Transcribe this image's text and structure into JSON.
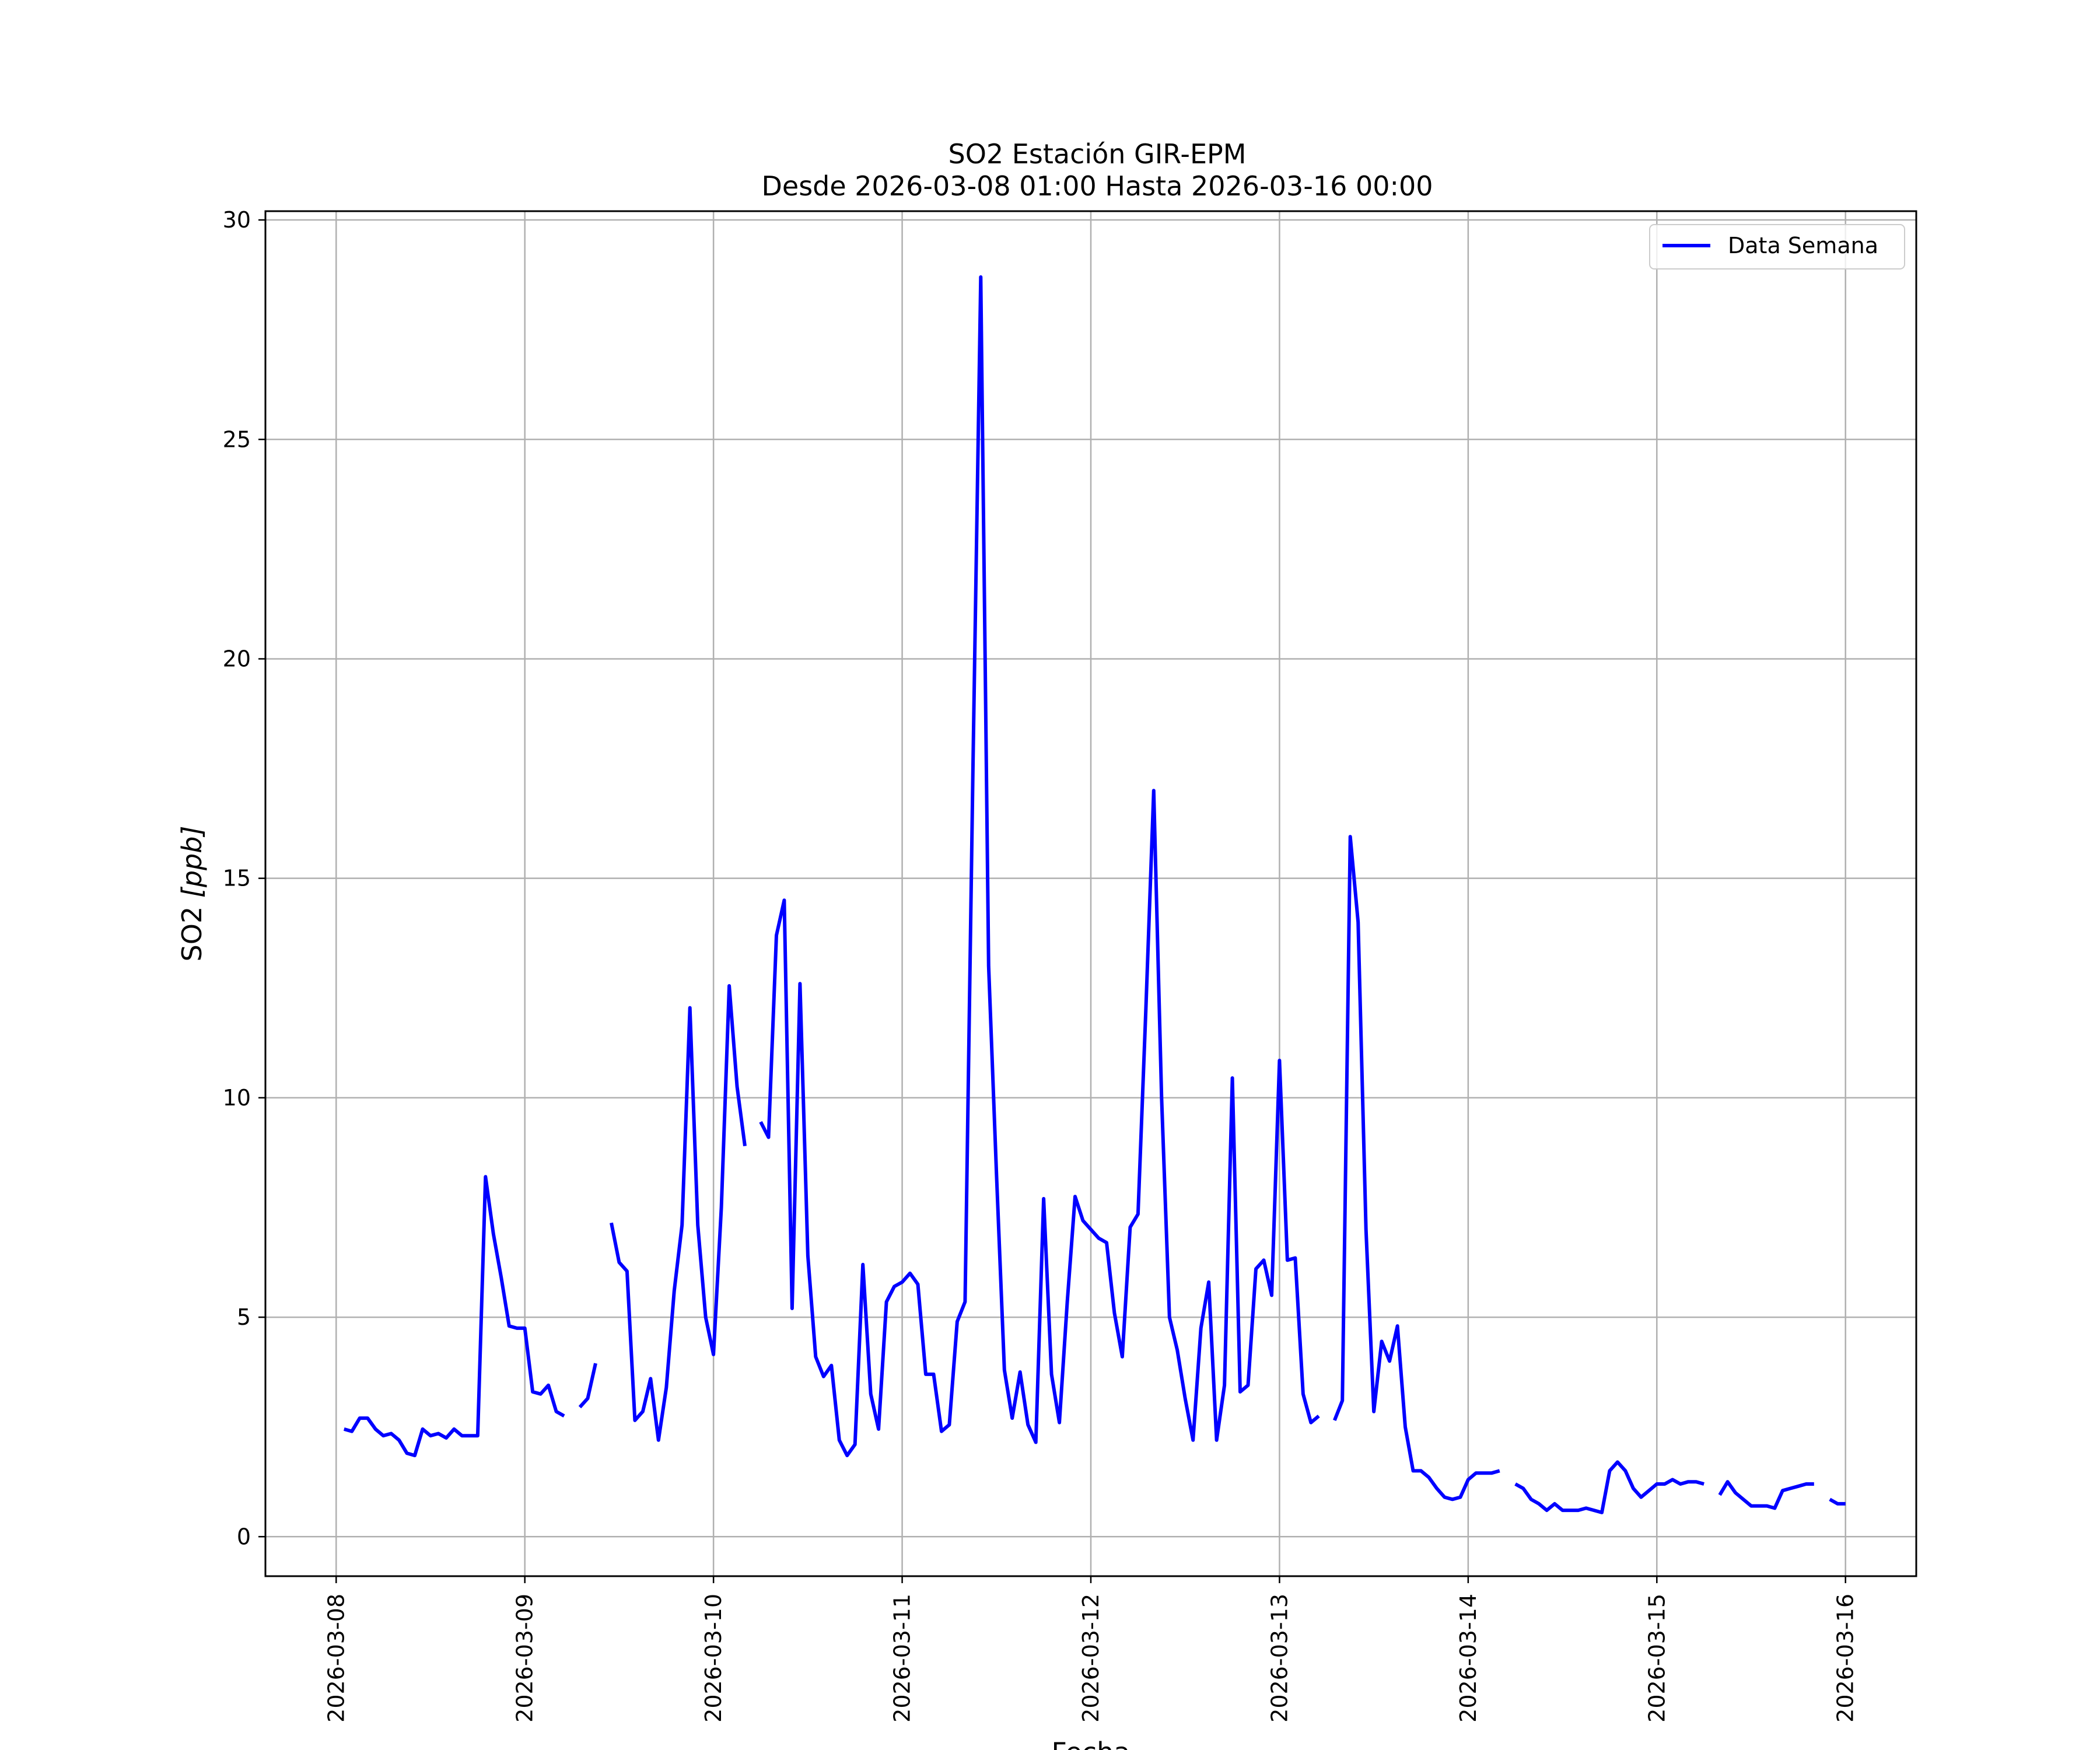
{
  "chart_data": {
    "type": "line",
    "title": "SO2 Estación GIR-EPM",
    "subtitle": "Desde 2026-03-08 01:00 Hasta 2026-03-16 00:00",
    "xlabel": "Fecha",
    "ylabel_main": "SO2 ",
    "ylabel_unit": "[ppb]",
    "x_start": "2026-03-08 01:00",
    "x_step_hours": 1,
    "xlim": [
      "2026-03-07 15:00",
      "2026-03-16 09:00"
    ],
    "ylim": [
      -0.9,
      30.2
    ],
    "x_ticks": [
      "2026-03-08",
      "2026-03-09",
      "2026-03-10",
      "2026-03-11",
      "2026-03-12",
      "2026-03-13",
      "2026-03-14",
      "2026-03-15",
      "2026-03-16"
    ],
    "y_ticks": [
      "0",
      "5",
      "10",
      "15",
      "20",
      "25",
      "30"
    ],
    "grid": true,
    "legend_position": "top-right",
    "series": [
      {
        "name": "Data Semana",
        "color": "#0000ff",
        "values": [
          2.45,
          2.4,
          2.7,
          2.7,
          2.45,
          2.3,
          2.35,
          2.2,
          1.9,
          1.85,
          2.45,
          2.3,
          2.35,
          2.25,
          2.45,
          2.3,
          2.3,
          2.3,
          8.2,
          6.9,
          5.9,
          4.8,
          4.75,
          4.75,
          3.3,
          3.25,
          3.45,
          2.85,
          2.75,
          null,
          2.95,
          3.15,
          3.95,
          null,
          7.15,
          6.25,
          6.05,
          2.65,
          2.85,
          3.6,
          2.2,
          3.4,
          5.6,
          7.1,
          12.05,
          7.1,
          5.0,
          4.15,
          7.5,
          12.55,
          10.25,
          8.9,
          null,
          9.45,
          9.1,
          13.7,
          14.5,
          5.2,
          12.6,
          6.4,
          4.1,
          3.65,
          3.9,
          2.2,
          1.85,
          2.1,
          6.2,
          3.25,
          2.45,
          5.35,
          5.7,
          5.8,
          6.0,
          5.75,
          3.7,
          3.7,
          2.4,
          2.55,
          4.9,
          5.35,
          17.5,
          28.7,
          13.0,
          8.25,
          3.8,
          2.7,
          3.75,
          2.55,
          2.15,
          7.7,
          3.7,
          2.6,
          5.35,
          7.75,
          7.2,
          7.0,
          6.8,
          6.7,
          5.1,
          4.1,
          7.05,
          7.35,
          12.0,
          17.0,
          10.0,
          5.0,
          4.25,
          3.15,
          2.2,
          4.75,
          5.8,
          2.2,
          3.45,
          10.45,
          3.3,
          3.45,
          6.1,
          6.3,
          5.5,
          10.85,
          6.3,
          6.35,
          3.25,
          2.6,
          2.75,
          null,
          2.65,
          3.1,
          15.95,
          14.0,
          7.0,
          2.85,
          4.45,
          4.0,
          4.8,
          2.5,
          1.5,
          1.5,
          1.35,
          1.1,
          0.9,
          0.85,
          0.9,
          1.3,
          1.45,
          1.45,
          1.45,
          1.5,
          null,
          1.2,
          1.1,
          0.85,
          0.75,
          0.6,
          0.75,
          0.6,
          0.6,
          0.6,
          0.65,
          0.6,
          0.55,
          1.5,
          1.7,
          1.5,
          1.1,
          0.9,
          1.05,
          1.2,
          1.2,
          1.3,
          1.2,
          1.25,
          1.25,
          1.2,
          null,
          0.95,
          1.25,
          1.0,
          0.85,
          0.7,
          0.7,
          0.7,
          0.65,
          1.05,
          1.1,
          1.15,
          1.2,
          1.2,
          null,
          0.85,
          0.75,
          0.75
        ]
      }
    ]
  }
}
